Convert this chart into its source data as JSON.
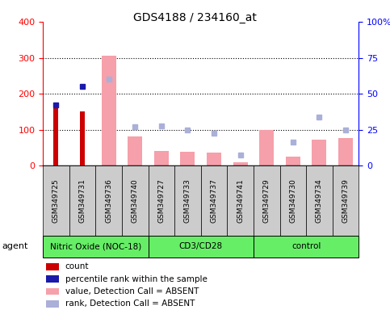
{
  "title": "GDS4188 / 234160_at",
  "samples": [
    "GSM349725",
    "GSM349731",
    "GSM349736",
    "GSM349740",
    "GSM349727",
    "GSM349733",
    "GSM349737",
    "GSM349741",
    "GSM349729",
    "GSM349730",
    "GSM349734",
    "GSM349739"
  ],
  "groups": [
    {
      "label": "Nitric Oxide (NOC-18)",
      "indices": [
        0,
        1,
        2,
        3
      ]
    },
    {
      "label": "CD3/CD28",
      "indices": [
        4,
        5,
        6,
        7
      ]
    },
    {
      "label": "control",
      "indices": [
        8,
        9,
        10,
        11
      ]
    }
  ],
  "count_values": [
    165,
    150,
    null,
    null,
    null,
    null,
    null,
    null,
    null,
    null,
    null,
    null
  ],
  "percentile_values": [
    170,
    220,
    null,
    null,
    null,
    null,
    null,
    null,
    null,
    null,
    null,
    null
  ],
  "absent_value_bars": [
    null,
    null,
    305,
    82,
    42,
    40,
    37,
    10,
    100,
    25,
    72,
    77
  ],
  "absent_rank_dots": [
    null,
    null,
    240,
    108,
    110,
    100,
    90,
    30,
    null,
    65,
    135,
    100
  ],
  "ylim_left": [
    0,
    400
  ],
  "ylim_right": [
    0,
    100
  ],
  "left_ticks": [
    0,
    100,
    200,
    300,
    400
  ],
  "right_ticks": [
    0,
    25,
    50,
    75,
    100
  ],
  "right_tick_labels": [
    "0",
    "25",
    "50",
    "75",
    "100%"
  ],
  "grid_lines": [
    100,
    200,
    300
  ],
  "absent_bar_width": 0.55,
  "count_bar_width": 0.18,
  "count_color": "#cc0000",
  "percentile_color": "#1a1aaa",
  "absent_bar_color": "#f5a0aa",
  "absent_rank_color": "#aab0d8",
  "group_color": "#66ee66",
  "sample_box_color": "#cccccc",
  "legend_items": [
    {
      "color": "#cc0000",
      "label": "count",
      "marker": "square"
    },
    {
      "color": "#1a1aaa",
      "label": "percentile rank within the sample",
      "marker": "square"
    },
    {
      "color": "#f5a0aa",
      "label": "value, Detection Call = ABSENT",
      "marker": "square"
    },
    {
      "color": "#aab0d8",
      "label": "rank, Detection Call = ABSENT",
      "marker": "square"
    }
  ]
}
